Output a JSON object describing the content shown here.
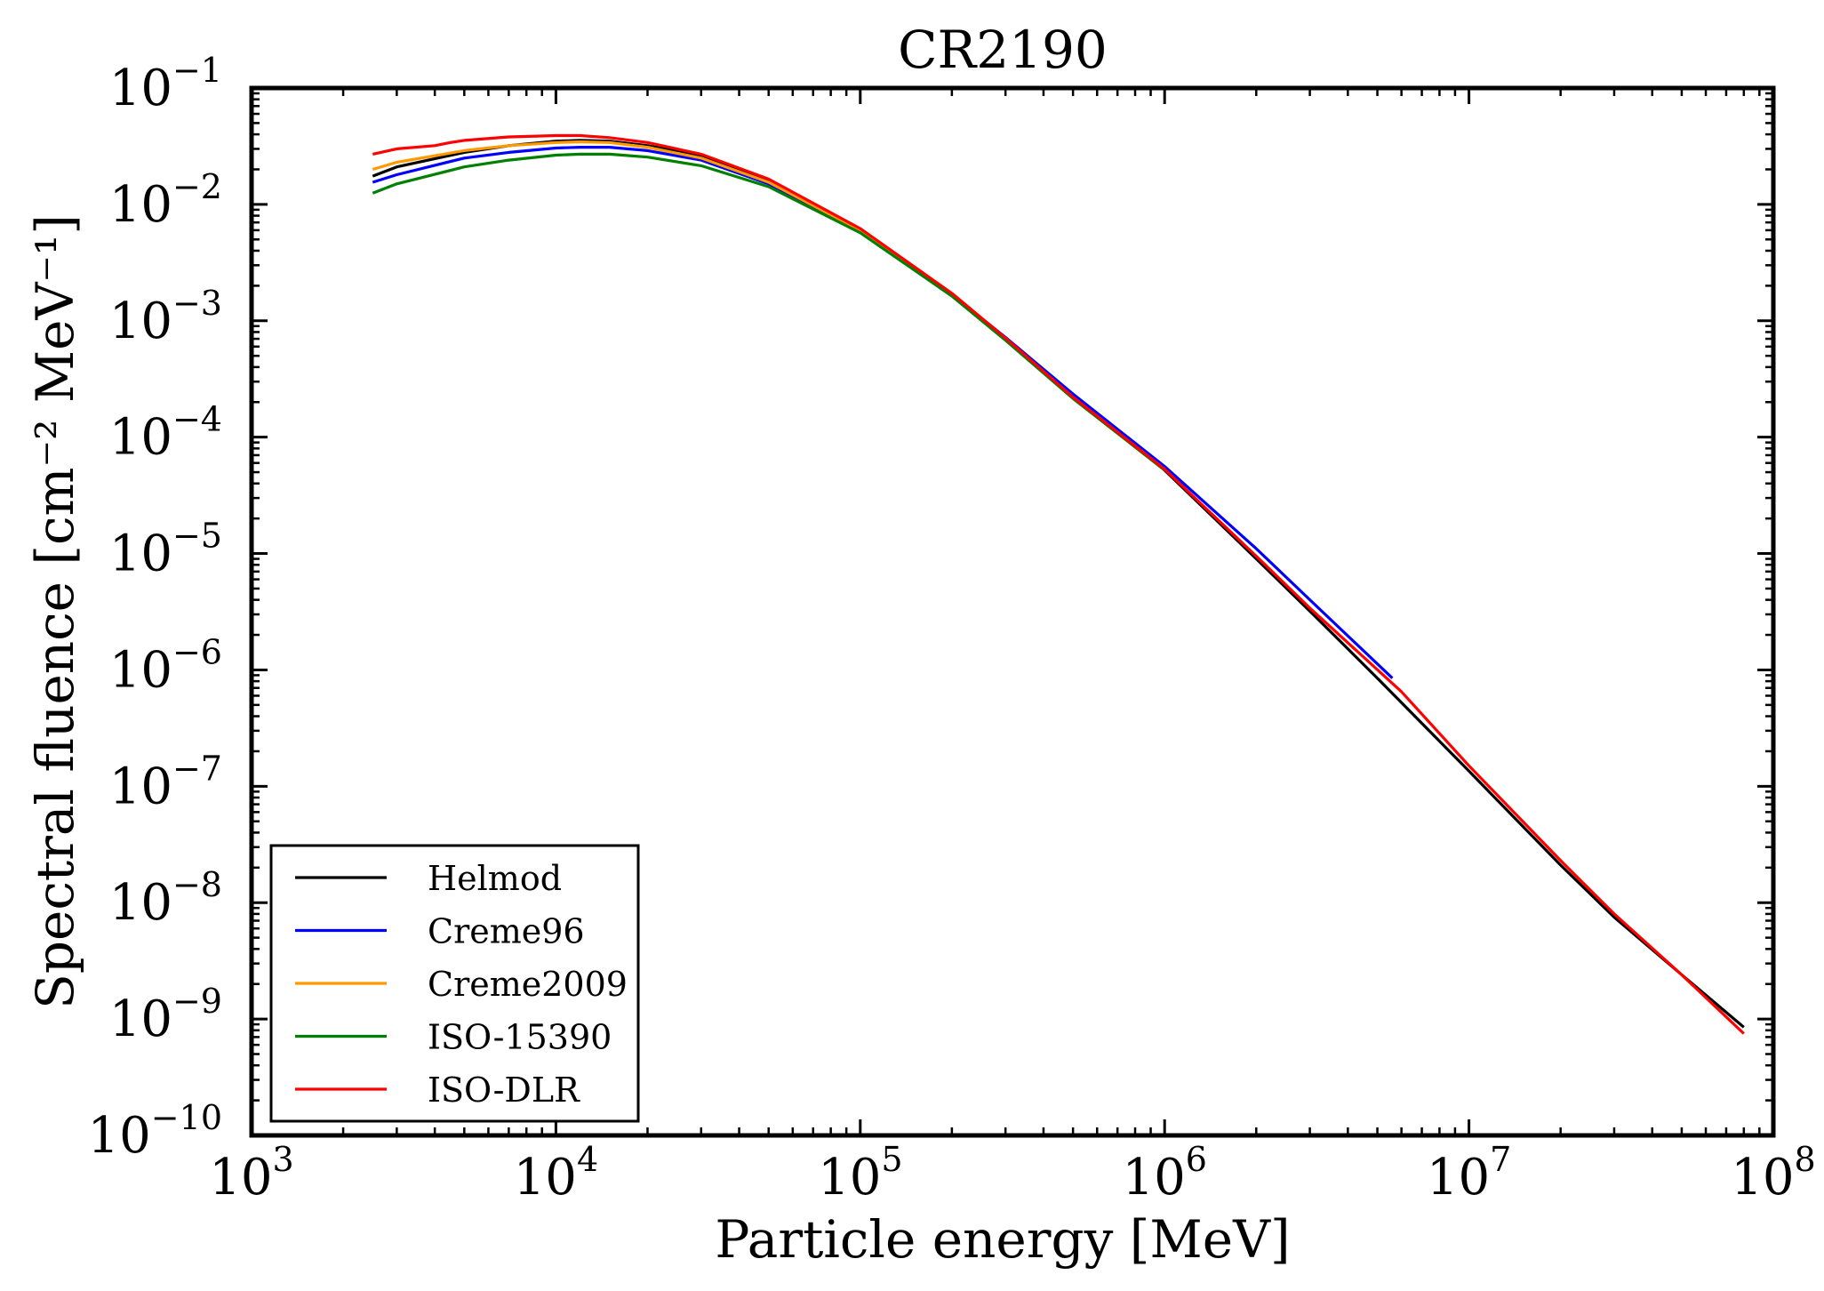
{
  "chart_data": {
    "type": "line",
    "title": "CR2190",
    "xlabel": "Particle energy [MeV]",
    "ylabel": "Spectral fluence [cm⁻² MeV⁻¹]",
    "x_scale": "log",
    "y_scale": "log",
    "xlim": [
      1000,
      100000000
    ],
    "ylim": [
      1e-10,
      0.1
    ],
    "grid": false,
    "legend_position": "lower-left",
    "x_ticks": [
      {
        "base": "10",
        "exp": "3"
      },
      {
        "base": "10",
        "exp": "4"
      },
      {
        "base": "10",
        "exp": "5"
      },
      {
        "base": "10",
        "exp": "6"
      },
      {
        "base": "10",
        "exp": "7"
      },
      {
        "base": "10",
        "exp": "8"
      }
    ],
    "y_ticks": [
      {
        "base": "10",
        "exp": "−1"
      },
      {
        "base": "10",
        "exp": "−2"
      },
      {
        "base": "10",
        "exp": "−3"
      },
      {
        "base": "10",
        "exp": "−4"
      },
      {
        "base": "10",
        "exp": "−5"
      },
      {
        "base": "10",
        "exp": "−6"
      },
      {
        "base": "10",
        "exp": "−7"
      },
      {
        "base": "10",
        "exp": "−8"
      },
      {
        "base": "10",
        "exp": "−9"
      },
      {
        "base": "10",
        "exp": "−10"
      }
    ],
    "series": [
      {
        "name": "Helmod",
        "color": "#000000",
        "x": [
          2500,
          3000,
          5000,
          7000,
          10000,
          12000,
          15000,
          20000,
          30000,
          50000,
          100000,
          200000,
          300000,
          500000,
          1000000,
          2000000,
          3000000,
          5000000,
          10000000,
          20000000,
          30000000,
          50000000,
          80000000
        ],
        "y": [
          0.0175,
          0.021,
          0.028,
          0.032,
          0.035,
          0.0355,
          0.035,
          0.032,
          0.026,
          0.016,
          0.0061,
          0.0017,
          0.0007,
          0.00022,
          5.2e-05,
          9e-06,
          3.2e-06,
          8.5e-07,
          1.35e-07,
          2.1e-08,
          7.5e-09,
          2.4e-09,
          8.5e-10
        ]
      },
      {
        "name": "Creme96",
        "color": "#0000ff",
        "x": [
          2500,
          3000,
          5000,
          7000,
          10000,
          12000,
          15000,
          20000,
          30000,
          50000,
          100000,
          200000,
          300000,
          500000,
          1000000,
          2000000,
          3000000,
          5600000
        ],
        "y": [
          0.0155,
          0.018,
          0.025,
          0.028,
          0.0305,
          0.031,
          0.031,
          0.029,
          0.024,
          0.015,
          0.0059,
          0.00168,
          0.00072,
          0.000235,
          5.6e-05,
          1.1e-05,
          4e-06,
          8.5e-07
        ]
      },
      {
        "name": "Creme2009",
        "color": "#ff9900",
        "x": [
          2500,
          3000,
          5000,
          7000,
          10000,
          12000,
          15000,
          20000,
          30000,
          50000,
          100000,
          200000,
          300000,
          500000,
          1000000
        ],
        "y": [
          0.02,
          0.023,
          0.029,
          0.032,
          0.034,
          0.0345,
          0.034,
          0.031,
          0.025,
          0.0155,
          0.006,
          0.00168,
          0.0007,
          0.00022,
          5.3e-05
        ]
      },
      {
        "name": "ISO-15390",
        "color": "#008000",
        "x": [
          2500,
          3000,
          5000,
          7000,
          10000,
          12000,
          15000,
          20000,
          30000,
          50000,
          100000,
          200000,
          300000,
          500000,
          1000000
        ],
        "y": [
          0.0125,
          0.015,
          0.021,
          0.024,
          0.0265,
          0.027,
          0.027,
          0.0255,
          0.0215,
          0.0142,
          0.0057,
          0.00163,
          0.00068,
          0.000215,
          5.2e-05
        ]
      },
      {
        "name": "ISO-DLR",
        "color": "#ff0000",
        "x": [
          2500,
          3000,
          4000,
          4500,
          5000,
          7000,
          10000,
          12000,
          15000,
          20000,
          30000,
          50000,
          100000,
          200000,
          300000,
          500000,
          1000000,
          2000000,
          3000000,
          6000000,
          10000000,
          20000000,
          30000000,
          50000000,
          80000000
        ],
        "y": [
          0.027,
          0.03,
          0.032,
          0.034,
          0.0355,
          0.038,
          0.039,
          0.039,
          0.0375,
          0.034,
          0.027,
          0.0165,
          0.0062,
          0.00172,
          0.00071,
          0.00022,
          5.3e-05,
          9.5e-06,
          3.4e-06,
          6.5e-07,
          1.5e-07,
          2.3e-08,
          8e-09,
          2.4e-09,
          7.5e-10
        ]
      }
    ]
  }
}
